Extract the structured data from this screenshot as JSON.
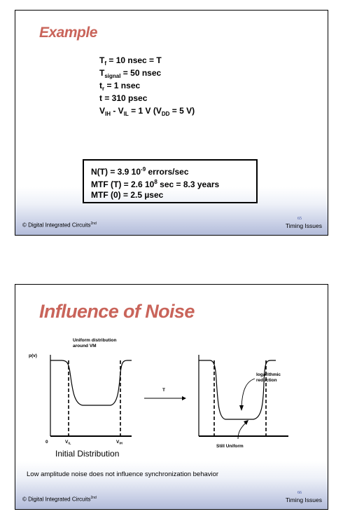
{
  "slide1": {
    "title": "Example",
    "lines": [
      {
        "main": "T",
        "sub": "f",
        "rest": " = 10 nsec = T"
      },
      {
        "main": "T",
        "sub": "signal",
        "rest": " = 50 nsec"
      },
      {
        "main": "t",
        "sub": "r",
        "rest": " = 1 nsec"
      },
      {
        "main": "t = 310 psec",
        "sub": "",
        "rest": ""
      }
    ],
    "vline": {
      "v1": "V",
      "s1": "IH",
      "mid": " - V",
      "s2": "IL",
      "after": " = 1 V (V",
      "s3": "DD",
      "end": " = 5 V)"
    },
    "results": [
      {
        "pre": "N(T) = 3.9 10",
        "exp": "-9",
        "post": " errors/sec"
      },
      {
        "pre": "MTF (T) = 2.6 10",
        "exp": "8",
        "post": " sec = 8.3 years"
      },
      {
        "pre": "MTF (0) = 2.5 ",
        "exp": "",
        "post": "µsec"
      }
    ],
    "footer_left": "© Digital Integrated Circuits",
    "footer_sup": "2nd",
    "page": "65",
    "footer_right": "Timing Issues"
  },
  "slide2": {
    "title": "Influence of Noise",
    "label_uniform_1": "Uniform distribution",
    "label_uniform_2": "around VM",
    "label_pv": "p(v)",
    "label_zero": "0",
    "label_vil": "V",
    "label_vil_sub": "IL",
    "label_vih": "V",
    "label_vih_sub": "IH",
    "label_initial": "Initial Distribution",
    "label_t": "T",
    "label_log_1": "logarithmic",
    "label_log_2": "reduction",
    "label_still": "Still Uniform",
    "caption": "Low amplitude noise does not influence synchronization behavior",
    "footer_left": "© Digital Integrated Circuits",
    "footer_sup": "2nd",
    "page": "66",
    "footer_right": "Timing Issues"
  }
}
